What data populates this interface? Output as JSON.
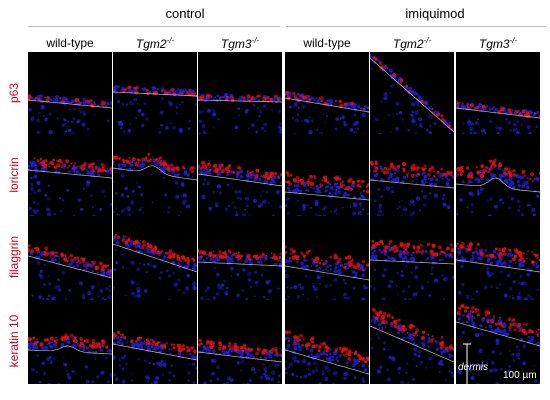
{
  "groups": [
    {
      "label": "control"
    },
    {
      "label": "imiquimod"
    }
  ],
  "columns": [
    {
      "prefix": "wild-type",
      "italic": "",
      "sup": ""
    },
    {
      "prefix": "",
      "italic": "Tgm2",
      "sup": "-/-"
    },
    {
      "prefix": "",
      "italic": "Tgm3",
      "sup": "-/-"
    },
    {
      "prefix": "wild-type",
      "italic": "",
      "sup": ""
    },
    {
      "prefix": "",
      "italic": "Tgm2",
      "sup": "-/-"
    },
    {
      "prefix": "",
      "italic": "Tgm3",
      "sup": "-/-"
    }
  ],
  "rows": [
    {
      "label": "p63"
    },
    {
      "label": "loricrin"
    },
    {
      "label": "filaggrin"
    },
    {
      "label": "keratin 10"
    }
  ],
  "annotations": {
    "scale_bar": "100 µm",
    "dermis": "dermis"
  },
  "colors": {
    "marker_red": "#e01010",
    "nuclei_blue": "#1f1fd0",
    "row_label": "#d0021b",
    "basement_line": "#e8e8e8"
  }
}
